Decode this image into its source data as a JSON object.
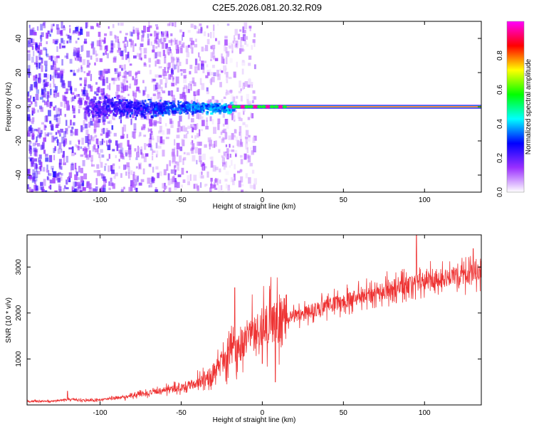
{
  "figure_title": "C2E5.2026.081.20.32.R09",
  "chart_data": [
    {
      "type": "heatmap",
      "title": "C2E5.2026.081.20.32.R09",
      "xlabel": "Height of straight line (km)",
      "ylabel": "Frequency (Hz)",
      "xlim": [
        -145,
        135
      ],
      "ylim": [
        -50,
        50
      ],
      "x_ticks": [
        -100,
        -50,
        0,
        50,
        100
      ],
      "x_tick_labels": [
        "-100",
        "-50",
        "0",
        "50",
        "100"
      ],
      "y_ticks": [
        -40,
        -20,
        0,
        20,
        40
      ],
      "y_tick_labels": [
        "-40",
        "-20",
        "0",
        "20",
        "40"
      ],
      "colorbar": {
        "label": "Normalized spectral amplitude",
        "range": [
          0.0,
          1.0
        ],
        "ticks": [
          0.0,
          0.2,
          0.4,
          0.6,
          0.8
        ],
        "tick_labels": [
          "0.0",
          "0.2",
          "0.4",
          "0.6",
          "0.8"
        ],
        "colormap": [
          "#ffffff",
          "#9b30ff",
          "#0000ff",
          "#00ffff",
          "#00ff00",
          "#ffff00",
          "#ff0000",
          "#ff00ff"
        ]
      },
      "features": {
        "noisy_region_x": [
          -145,
          -20
        ],
        "tone_region_x": [
          -20,
          135
        ],
        "tone_frequency_hz": 0,
        "tone_peak_amplitude": 0.95
      },
      "grid": false
    },
    {
      "type": "line",
      "xlabel": "Height of straight line (km)",
      "ylabel": "SNR (10 * v/v)",
      "xlim": [
        -145,
        135
      ],
      "ylim": [
        0,
        3700
      ],
      "x_ticks": [
        -100,
        -50,
        0,
        50,
        100
      ],
      "x_tick_labels": [
        "-100",
        "-50",
        "0",
        "50",
        "100"
      ],
      "y_ticks": [
        1000,
        2000,
        3000
      ],
      "y_tick_labels": [
        "1000",
        "2000",
        "3000"
      ],
      "series": [
        {
          "name": "SNR",
          "color": "#ee3333",
          "x": [
            -145,
            -130,
            -120,
            -110,
            -100,
            -90,
            -80,
            -70,
            -60,
            -50,
            -40,
            -35,
            -30,
            -25,
            -20,
            -15,
            -10,
            -5,
            0,
            5,
            10,
            20,
            30,
            40,
            50,
            60,
            70,
            80,
            90,
            100,
            110,
            120,
            135
          ],
          "values": [
            80,
            80,
            120,
            100,
            110,
            150,
            200,
            260,
            330,
            380,
            480,
            560,
            700,
            950,
            1150,
            1250,
            1450,
            1550,
            1650,
            1750,
            1850,
            1950,
            2050,
            2150,
            2250,
            2350,
            2450,
            2550,
            2600,
            2700,
            2750,
            2800,
            2900
          ],
          "spikes": [
            [
              -120,
              300
            ],
            [
              -17,
              2550
            ],
            [
              95,
              3700
            ],
            [
              0,
              900
            ],
            [
              8,
              500
            ],
            [
              130,
              3400
            ]
          ]
        }
      ],
      "grid": false
    }
  ]
}
